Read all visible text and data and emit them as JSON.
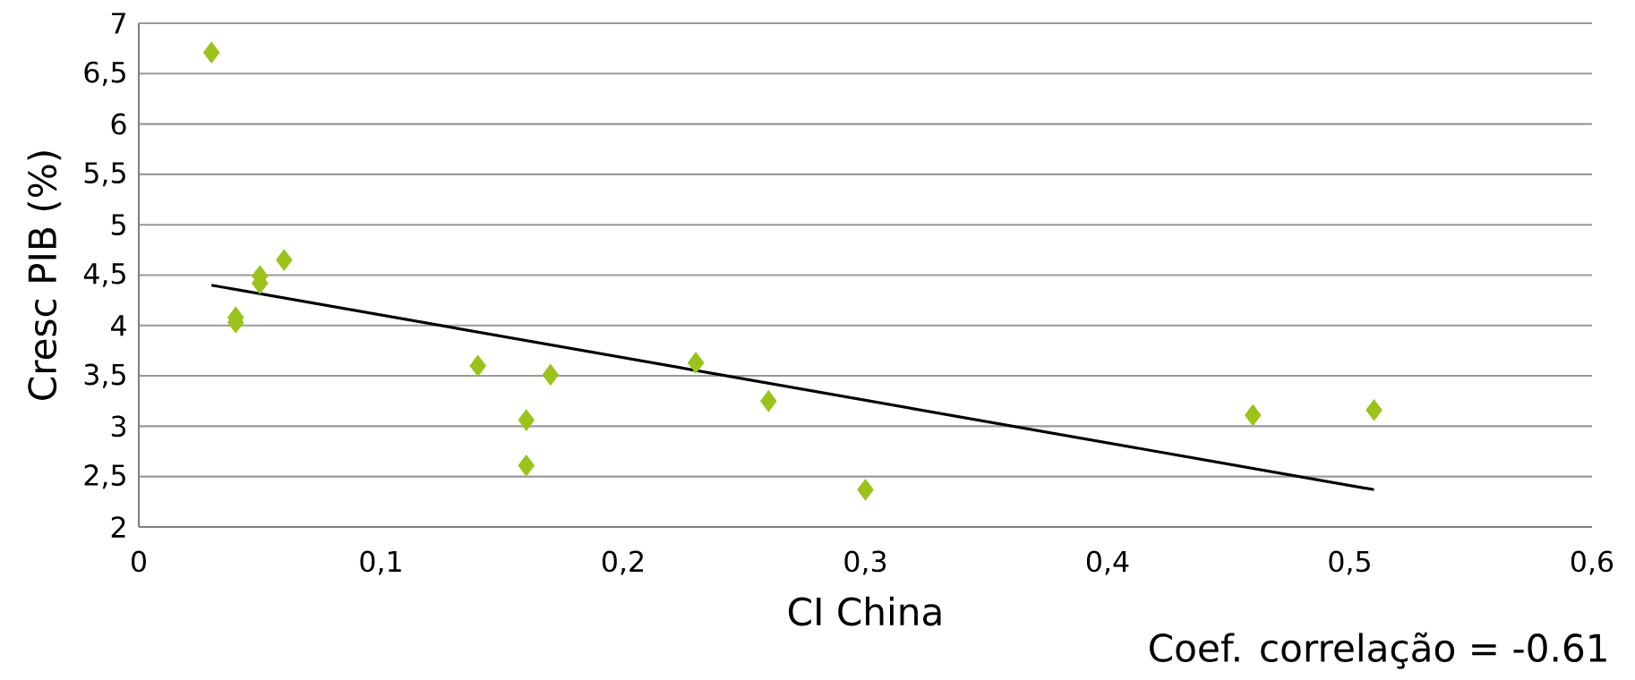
{
  "chart_data": {
    "type": "scatter",
    "xlabel": "CI China",
    "ylabel": "Cresc PIB (%)",
    "series": [
      {
        "color": "#9bc31c",
        "marker": "diamond",
        "x": [
          0.03,
          0.04,
          0.04,
          0.05,
          0.05,
          0.06,
          0.14,
          0.16,
          0.16,
          0.17,
          0.23,
          0.26,
          0.3,
          0.46,
          0.51
        ],
        "values": [
          6.71,
          4.08,
          4.03,
          4.49,
          4.42,
          4.65,
          3.6,
          3.06,
          2.61,
          3.51,
          3.63,
          3.25,
          2.37,
          3.11,
          3.16
        ]
      },
      {
        "type": "line",
        "color": "#000000",
        "marker": "none",
        "line_style": "solid",
        "x": [
          0.03,
          0.51
        ],
        "values": [
          4.4,
          2.37
        ]
      }
    ],
    "xlim": [
      0,
      0.6
    ],
    "ylim": [
      2,
      7
    ],
    "xticks": [
      0,
      {
        "value": 0.1,
        "label": "0,1"
      },
      {
        "value": 0.2,
        "label": "0,2"
      },
      {
        "value": 0.3,
        "label": "0,3"
      },
      {
        "value": 0.4,
        "label": "0,4"
      },
      {
        "value": 0.5,
        "label": "0,5"
      },
      {
        "value": 0.6,
        "label": "0,6"
      }
    ],
    "yticks": [
      2,
      {
        "value": 2.5,
        "label": "2,5"
      },
      3,
      {
        "value": 3.5,
        "label": "3,5"
      },
      4,
      {
        "value": 4.5,
        "label": "4,5"
      },
      5,
      {
        "value": 5.5,
        "label": "5,5"
      },
      6,
      {
        "value": 6.5,
        "label": "6,5"
      },
      7
    ],
    "grid": "y",
    "annotations": [
      "Coef. correlação = -0.61"
    ]
  }
}
